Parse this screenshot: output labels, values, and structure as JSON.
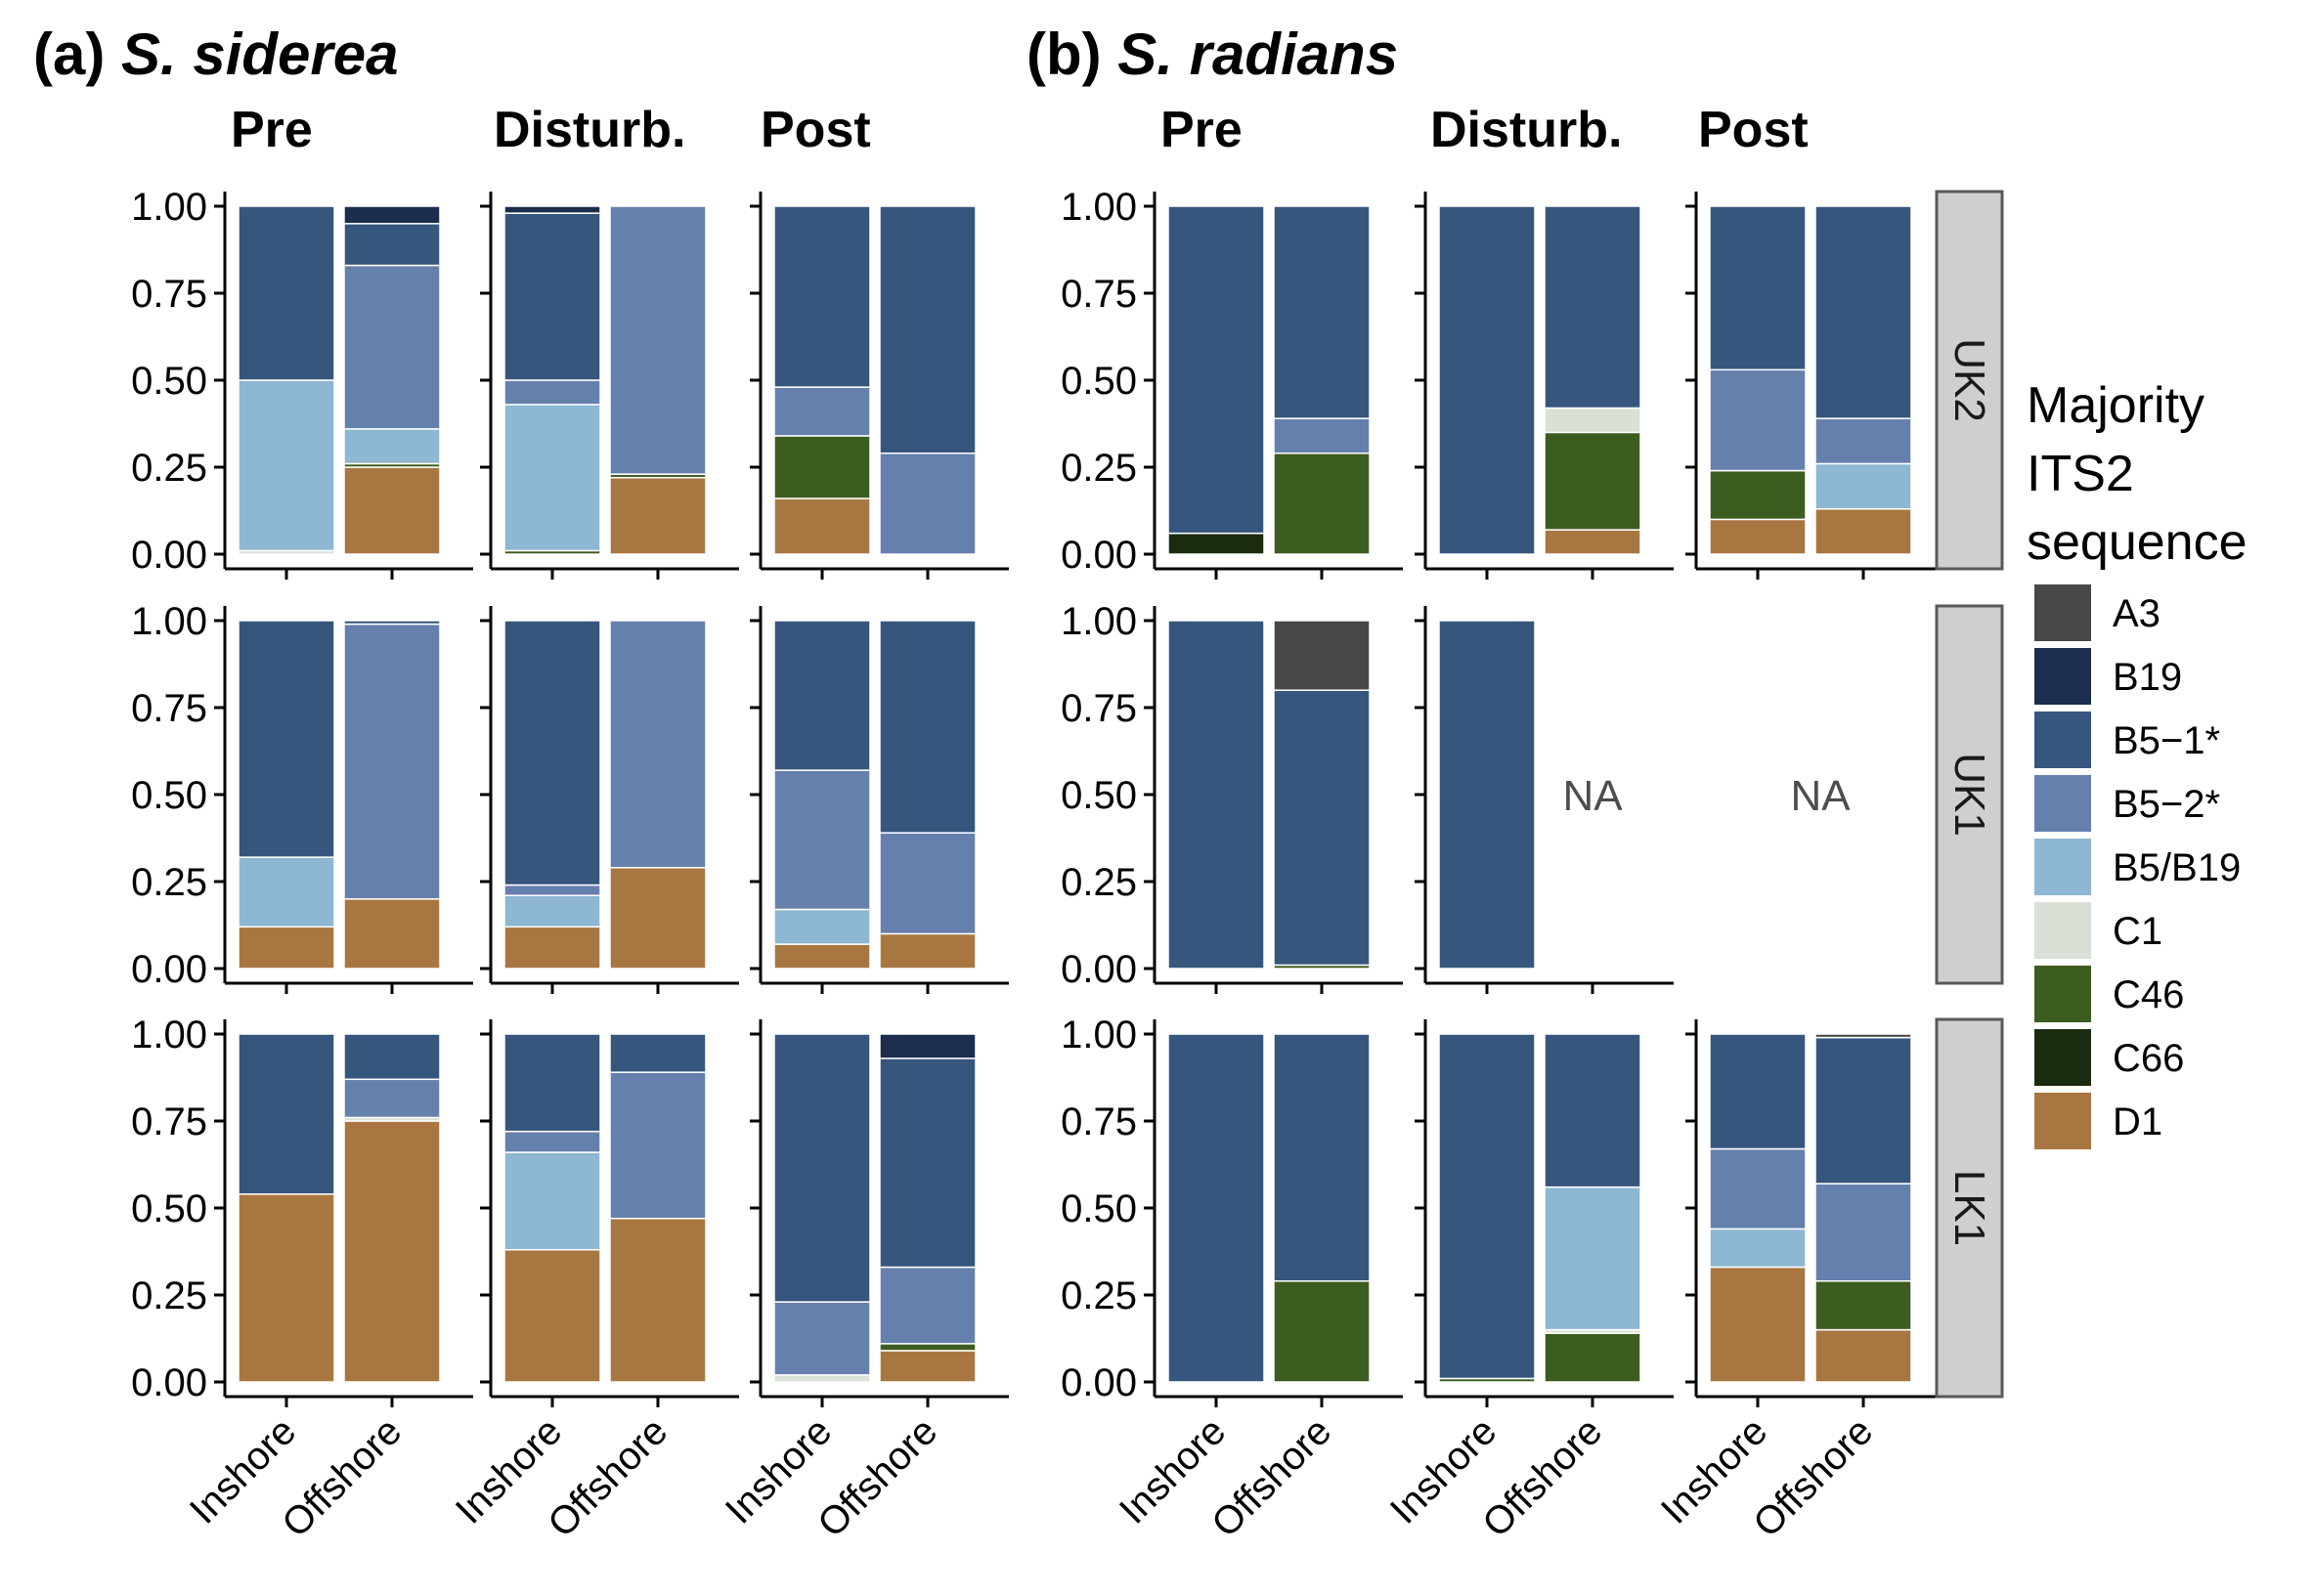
{
  "chart_data": {
    "type": "bar",
    "stacked": true,
    "panels": [
      {
        "title_letter": "(a)",
        "title_species": "S. siderea"
      },
      {
        "title_letter": "(b)",
        "title_species": "S. radians"
      }
    ],
    "periods": [
      "Pre",
      "Disturb.",
      "Post"
    ],
    "sites": [
      "UK2",
      "UK1",
      "LK1"
    ],
    "categories": [
      "Inshore",
      "Offshore"
    ],
    "y_ticks": [
      "0.00",
      "0.25",
      "0.50",
      "0.75",
      "1.00"
    ],
    "ylim": [
      0,
      1
    ],
    "na_label": "NA",
    "legend": {
      "title": [
        "Majority",
        "ITS2",
        "sequence"
      ],
      "entries": [
        {
          "name": "A3",
          "color": "#474747"
        },
        {
          "name": "B19",
          "color": "#1c2d4e"
        },
        {
          "name": "B5−1*",
          "color": "#36567d"
        },
        {
          "name": "B5−2*",
          "color": "#6680ad"
        },
        {
          "name": "B5/B19",
          "color": "#8db7d2"
        },
        {
          "name": "C1",
          "color": "#d9e0d6"
        },
        {
          "name": "C46",
          "color": "#3d5c1f"
        },
        {
          "name": "C66",
          "color": "#1b2b10"
        },
        {
          "name": "D1",
          "color": "#a87741"
        }
      ]
    },
    "series_order": [
      "D1",
      "C66",
      "C46",
      "C1",
      "B5/B19",
      "B5−2*",
      "B5−1*",
      "B19",
      "A3"
    ],
    "data": {
      "S. siderea": {
        "UK2": {
          "Pre": {
            "Inshore": {
              "D1": 0.0,
              "C66": 0.0,
              "C46": 0.0,
              "C1": 0.01,
              "B5/B19": 0.49,
              "B5−2*": 0.0,
              "B5−1*": 0.5,
              "B19": 0.0,
              "A3": 0.0
            },
            "Offshore": {
              "D1": 0.25,
              "C66": 0.0,
              "C46": 0.01,
              "C1": 0.0,
              "B5/B19": 0.1,
              "B5−2*": 0.47,
              "B5−1*": 0.12,
              "B19": 0.05,
              "A3": 0.0
            }
          },
          "Disturb.": {
            "Inshore": {
              "D1": 0.0,
              "C66": 0.0,
              "C46": 0.01,
              "C1": 0.0,
              "B5/B19": 0.42,
              "B5−2*": 0.07,
              "B5−1*": 0.48,
              "B19": 0.02,
              "A3": 0.0
            },
            "Offshore": {
              "D1": 0.22,
              "C66": 0.0,
              "C46": 0.01,
              "C1": 0.0,
              "B5/B19": 0.0,
              "B5−2*": 0.77,
              "B5−1*": 0.0,
              "B19": 0.0,
              "A3": 0.0
            }
          },
          "Post": {
            "Inshore": {
              "D1": 0.16,
              "C66": 0.0,
              "C46": 0.18,
              "C1": 0.0,
              "B5/B19": 0.0,
              "B5−2*": 0.14,
              "B5−1*": 0.52,
              "B19": 0.0,
              "A3": 0.0
            },
            "Offshore": {
              "D1": 0.0,
              "C66": 0.0,
              "C46": 0.0,
              "C1": 0.0,
              "B5/B19": 0.0,
              "B5−2*": 0.29,
              "B5−1*": 0.71,
              "B19": 0.0,
              "A3": 0.0
            }
          }
        },
        "UK1": {
          "Pre": {
            "Inshore": {
              "D1": 0.12,
              "C66": 0.0,
              "C46": 0.0,
              "C1": 0.0,
              "B5/B19": 0.2,
              "B5−2*": 0.0,
              "B5−1*": 0.68,
              "B19": 0.0,
              "A3": 0.0
            },
            "Offshore": {
              "D1": 0.2,
              "C66": 0.0,
              "C46": 0.0,
              "C1": 0.0,
              "B5/B19": 0.0,
              "B5−2*": 0.79,
              "B5−1*": 0.01,
              "B19": 0.0,
              "A3": 0.0
            }
          },
          "Disturb.": {
            "Inshore": {
              "D1": 0.12,
              "C66": 0.0,
              "C46": 0.0,
              "C1": 0.0,
              "B5/B19": 0.09,
              "B5−2*": 0.03,
              "B5−1*": 0.76,
              "B19": 0.0,
              "A3": 0.0
            },
            "Offshore": {
              "D1": 0.29,
              "C66": 0.0,
              "C46": 0.0,
              "C1": 0.0,
              "B5/B19": 0.0,
              "B5−2*": 0.71,
              "B5−1*": 0.0,
              "B19": 0.0,
              "A3": 0.0
            }
          },
          "Post": {
            "Inshore": {
              "D1": 0.07,
              "C66": 0.0,
              "C46": 0.0,
              "C1": 0.0,
              "B5/B19": 0.1,
              "B5−2*": 0.4,
              "B5−1*": 0.43,
              "B19": 0.0,
              "A3": 0.0
            },
            "Offshore": {
              "D1": 0.1,
              "C66": 0.0,
              "C46": 0.0,
              "C1": 0.0,
              "B5/B19": 0.0,
              "B5−2*": 0.29,
              "B5−1*": 0.61,
              "B19": 0.0,
              "A3": 0.0
            }
          }
        },
        "LK1": {
          "Pre": {
            "Inshore": {
              "D1": 0.54,
              "C66": 0.0,
              "C46": 0.0,
              "C1": 0.0,
              "B5/B19": 0.0,
              "B5−2*": 0.0,
              "B5−1*": 0.46,
              "B19": 0.0,
              "A3": 0.0
            },
            "Offshore": {
              "D1": 0.75,
              "C66": 0.0,
              "C46": 0.0,
              "C1": 0.01,
              "B5/B19": 0.0,
              "B5−2*": 0.11,
              "B5−1*": 0.13,
              "B19": 0.0,
              "A3": 0.0
            }
          },
          "Disturb.": {
            "Inshore": {
              "D1": 0.38,
              "C66": 0.0,
              "C46": 0.0,
              "C1": 0.0,
              "B5/B19": 0.28,
              "B5−2*": 0.06,
              "B5−1*": 0.28,
              "B19": 0.0,
              "A3": 0.0
            },
            "Offshore": {
              "D1": 0.47,
              "C66": 0.0,
              "C46": 0.0,
              "C1": 0.0,
              "B5/B19": 0.0,
              "B5−2*": 0.42,
              "B5−1*": 0.11,
              "B19": 0.0,
              "A3": 0.0
            }
          },
          "Post": {
            "Inshore": {
              "D1": 0.0,
              "C66": 0.0,
              "C46": 0.0,
              "C1": 0.02,
              "B5/B19": 0.0,
              "B5−2*": 0.21,
              "B5−1*": 0.77,
              "B19": 0.0,
              "A3": 0.0
            },
            "Offshore": {
              "D1": 0.09,
              "C66": 0.0,
              "C46": 0.02,
              "C1": 0.0,
              "B5/B19": 0.0,
              "B5−2*": 0.22,
              "B5−1*": 0.6,
              "B19": 0.07,
              "A3": 0.0
            }
          }
        }
      },
      "S. radians": {
        "UK2": {
          "Pre": {
            "Inshore": {
              "D1": 0.0,
              "C66": 0.06,
              "C46": 0.0,
              "C1": 0.0,
              "B5/B19": 0.0,
              "B5−2*": 0.0,
              "B5−1*": 0.94,
              "B19": 0.0,
              "A3": 0.0
            },
            "Offshore": {
              "D1": 0.0,
              "C66": 0.0,
              "C46": 0.29,
              "C1": 0.0,
              "B5/B19": 0.0,
              "B5−2*": 0.1,
              "B5−1*": 0.61,
              "B19": 0.0,
              "A3": 0.0
            }
          },
          "Disturb.": {
            "Inshore": {
              "D1": 0.0,
              "C66": 0.0,
              "C46": 0.0,
              "C1": 0.0,
              "B5/B19": 0.0,
              "B5−2*": 0.0,
              "B5−1*": 1.0,
              "B19": 0.0,
              "A3": 0.0
            },
            "Offshore": {
              "D1": 0.07,
              "C66": 0.0,
              "C46": 0.28,
              "C1": 0.07,
              "B5/B19": 0.0,
              "B5−2*": 0.0,
              "B5−1*": 0.58,
              "B19": 0.0,
              "A3": 0.0
            }
          },
          "Post": {
            "Inshore": {
              "D1": 0.1,
              "C66": 0.0,
              "C46": 0.14,
              "C1": 0.0,
              "B5/B19": 0.0,
              "B5−2*": 0.29,
              "B5−1*": 0.47,
              "B19": 0.0,
              "A3": 0.0
            },
            "Offshore": {
              "D1": 0.13,
              "C66": 0.0,
              "C46": 0.0,
              "C1": 0.0,
              "B5/B19": 0.13,
              "B5−2*": 0.13,
              "B5−1*": 0.61,
              "B19": 0.0,
              "A3": 0.0
            }
          }
        },
        "UK1": {
          "Pre": {
            "Inshore": {
              "D1": 0.0,
              "C66": 0.0,
              "C46": 0.0,
              "C1": 0.0,
              "B5/B19": 0.0,
              "B5−2*": 0.0,
              "B5−1*": 1.0,
              "B19": 0.0,
              "A3": 0.0
            },
            "Offshore": {
              "D1": 0.0,
              "C66": 0.0,
              "C46": 0.01,
              "C1": 0.0,
              "B5/B19": 0.0,
              "B5−2*": 0.0,
              "B5−1*": 0.79,
              "B19": 0.0,
              "A3": 0.2
            }
          },
          "Disturb.": {
            "Inshore": {
              "D1": 0.0,
              "C66": 0.0,
              "C46": 0.0,
              "C1": 0.0,
              "B5/B19": 0.0,
              "B5−2*": 0.0,
              "B5−1*": 1.0,
              "B19": 0.0,
              "A3": 0.0
            },
            "Offshore": null
          },
          "Post": {
            "Inshore": null,
            "Offshore": null
          }
        },
        "LK1": {
          "Pre": {
            "Inshore": {
              "D1": 0.0,
              "C66": 0.0,
              "C46": 0.0,
              "C1": 0.0,
              "B5/B19": 0.0,
              "B5−2*": 0.0,
              "B5−1*": 1.0,
              "B19": 0.0,
              "A3": 0.0
            },
            "Offshore": {
              "D1": 0.0,
              "C66": 0.0,
              "C46": 0.29,
              "C1": 0.0,
              "B5/B19": 0.0,
              "B5−2*": 0.0,
              "B5−1*": 0.71,
              "B19": 0.0,
              "A3": 0.0
            }
          },
          "Disturb.": {
            "Inshore": {
              "D1": 0.0,
              "C66": 0.0,
              "C46": 0.01,
              "C1": 0.0,
              "B5/B19": 0.0,
              "B5−2*": 0.0,
              "B5−1*": 0.99,
              "B19": 0.0,
              "A3": 0.0
            },
            "Offshore": {
              "D1": 0.0,
              "C66": 0.0,
              "C46": 0.14,
              "C1": 0.01,
              "B5/B19": 0.41,
              "B5−2*": 0.0,
              "B5−1*": 0.44,
              "B19": 0.0,
              "A3": 0.0
            }
          },
          "Post": {
            "Inshore": {
              "D1": 0.33,
              "C66": 0.0,
              "C46": 0.0,
              "C1": 0.0,
              "B5/B19": 0.11,
              "B5−2*": 0.23,
              "B5−1*": 0.33,
              "B19": 0.0,
              "A3": 0.0
            },
            "Offshore": {
              "D1": 0.15,
              "C66": 0.0,
              "C46": 0.14,
              "C1": 0.0,
              "B5/B19": 0.0,
              "B5−2*": 0.28,
              "B5−1*": 0.42,
              "B19": 0.0,
              "A3": 0.01
            }
          }
        }
      }
    }
  }
}
